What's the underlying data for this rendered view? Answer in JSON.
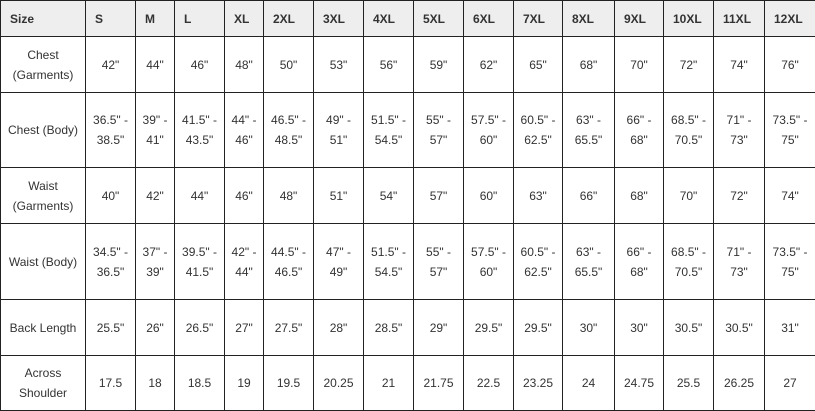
{
  "table": {
    "headers": [
      "Size",
      "S",
      "M",
      "L",
      "XL",
      "2XL",
      "3XL",
      "4XL",
      "5XL",
      "6XL",
      "7XL",
      "8XL",
      "9XL",
      "10XL",
      "11XL",
      "12XL"
    ],
    "rows": [
      {
        "label": "Chest (Garments)",
        "values": [
          "42\"",
          "44\"",
          "46\"",
          "48\"",
          "50\"",
          "53\"",
          "56\"",
          "59\"",
          "62\"",
          "65\"",
          "68\"",
          "70\"",
          "72\"",
          "74\"",
          "76\""
        ]
      },
      {
        "label": "Chest (Body)",
        "values": [
          "36.5\" - 38.5\"",
          "39\" - 41\"",
          "41.5\" - 43.5\"",
          "44\" - 46\"",
          "46.5\" - 48.5\"",
          "49\" - 51\"",
          "51.5\" - 54.5\"",
          "55\" - 57\"",
          "57.5\" - 60\"",
          "60.5\" - 62.5\"",
          "63\" - 65.5\"",
          "66\" - 68\"",
          "68.5\" - 70.5\"",
          "71\" - 73\"",
          "73.5\" - 75\""
        ]
      },
      {
        "label": "Waist (Garments)",
        "values": [
          "40\"",
          "42\"",
          "44\"",
          "46\"",
          "48\"",
          "51\"",
          "54\"",
          "57\"",
          "60\"",
          "63\"",
          "66\"",
          "68\"",
          "70\"",
          "72\"",
          "74\""
        ]
      },
      {
        "label": "Waist (Body)",
        "values": [
          "34.5\" - 36.5\"",
          "37\" - 39\"",
          "39.5\" - 41.5\"",
          "42\" - 44\"",
          "44.5\" - 46.5\"",
          "47\" - 49\"",
          "51.5\" - 54.5\"",
          "55\" - 57\"",
          "57.5\" - 60\"",
          "60.5\" - 62.5\"",
          "63\" - 65.5\"",
          "66\" - 68\"",
          "68.5\" - 70.5\"",
          "71\" - 73\"",
          "73.5\" - 75\""
        ]
      },
      {
        "label": "Back Length",
        "values": [
          "25.5\"",
          "26\"",
          "26.5\"",
          "27\"",
          "27.5\"",
          "28\"",
          "28.5\"",
          "29\"",
          "29.5\"",
          "29.5\"",
          "30\"",
          "30\"",
          "30.5\"",
          "30.5\"",
          "31\""
        ]
      },
      {
        "label": "Across Shoulder",
        "values": [
          "17.5",
          "18",
          "18.5",
          "19",
          "19.5",
          "20.25",
          "21",
          "21.75",
          "22.5",
          "23.25",
          "24",
          "24.75",
          "25.5",
          "26.25",
          "27"
        ]
      }
    ]
  }
}
